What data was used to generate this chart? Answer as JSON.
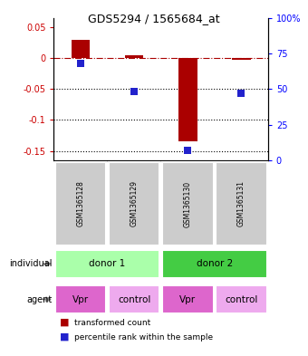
{
  "title": "GDS5294 / 1565684_at",
  "samples": [
    "GSM1365128",
    "GSM1365129",
    "GSM1365130",
    "GSM1365131"
  ],
  "bar_values": [
    0.03,
    0.005,
    -0.135,
    -0.003
  ],
  "percentile_values": [
    68,
    48,
    7,
    47
  ],
  "bar_color": "#aa0000",
  "dot_color": "#2222cc",
  "hline_color": "#aa0000",
  "dotted_color": "black",
  "donor1_color": "#aaffaa",
  "donor2_color": "#44cc44",
  "vpr_color": "#dd66cc",
  "vpr_light_color": "#eeaaee",
  "control_color": "#eeaaee",
  "sample_bg_color": "#cccccc",
  "individual_labels": [
    "donor 1",
    "donor 2"
  ],
  "agent_labels": [
    "Vpr",
    "control",
    "Vpr",
    "control"
  ],
  "legend_red": "transformed count",
  "legend_blue": "percentile rank within the sample",
  "bar_width": 0.35,
  "dot_size": 30,
  "right_yticks": [
    0,
    25,
    50,
    75,
    100
  ],
  "right_yticklabels": [
    "0",
    "25",
    "50",
    "75",
    "100%"
  ],
  "left_yticks": [
    -0.15,
    -0.1,
    -0.05,
    0.0,
    0.05
  ],
  "left_yticklabels": [
    "-0.15",
    "-0.1",
    "-0.05",
    "0",
    "0.05"
  ],
  "ylim_left": [
    -0.165,
    0.065
  ],
  "ylim_right": [
    0,
    100
  ]
}
